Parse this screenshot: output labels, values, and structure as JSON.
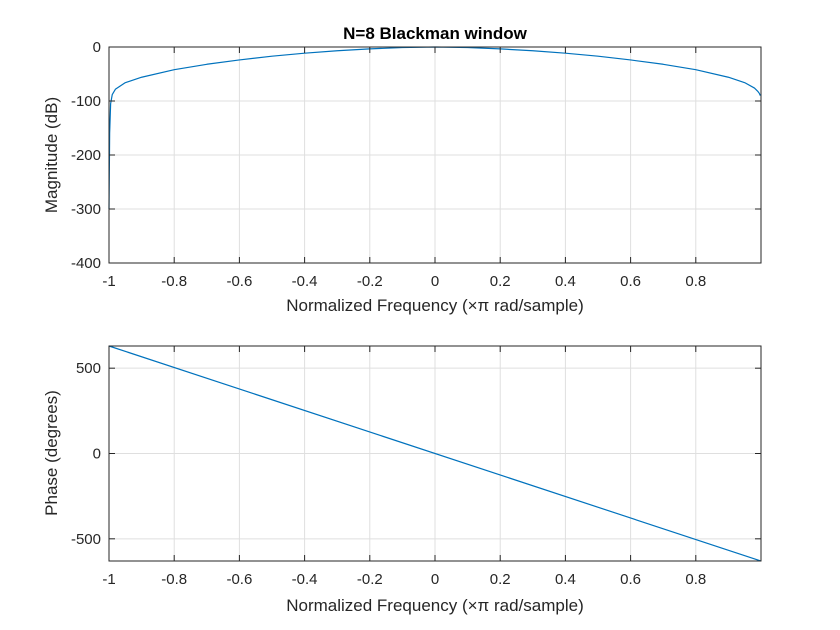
{
  "chart_data": [
    {
      "type": "line",
      "title": "N=8 Blackman window",
      "xlabel": "Normalized Frequency  (×π rad/sample)",
      "ylabel": "Magnitude (dB)",
      "xlim": [
        -1,
        1
      ],
      "ylim": [
        -400,
        0
      ],
      "xticks": [
        -1,
        -0.8,
        -0.6,
        -0.4,
        -0.2,
        0,
        0.2,
        0.4,
        0.6,
        0.8
      ],
      "xtick_labels": [
        "-1",
        "-0.8",
        "-0.6",
        "-0.4",
        "-0.2",
        "0",
        "0.2",
        "0.4",
        "0.6",
        "0.8"
      ],
      "yticks": [
        -400,
        -300,
        -200,
        -100,
        0
      ],
      "ytick_labels": [
        "-400",
        "-300",
        "-200",
        "-100",
        "0"
      ],
      "grid": true,
      "series": [
        {
          "color": "#0072BD",
          "x": [
            -1.0,
            -0.998,
            -0.995,
            -0.99,
            -0.98,
            -0.95,
            -0.9,
            -0.8,
            -0.7,
            -0.6,
            -0.5,
            -0.4,
            -0.3,
            -0.2,
            -0.1,
            0,
            0.1,
            0.2,
            0.3,
            0.4,
            0.5,
            0.6,
            0.7,
            0.8,
            0.9,
            0.95,
            0.98,
            0.99,
            0.995,
            0.998
          ],
          "y": [
            -300,
            -160,
            -105,
            -88,
            -78,
            -66,
            -56,
            -42,
            -32,
            -24,
            -17,
            -11.5,
            -7,
            -3.5,
            -1,
            0,
            -1,
            -3.5,
            -7,
            -11.5,
            -17,
            -24,
            -32,
            -42,
            -56,
            -66,
            -76,
            -82,
            -86,
            -90
          ]
        }
      ]
    },
    {
      "type": "line",
      "title": "",
      "xlabel": "Normalized Frequency  (×π rad/sample)",
      "ylabel": "Phase (degrees)",
      "xlim": [
        -1,
        1
      ],
      "ylim": [
        -630,
        630
      ],
      "xticks": [
        -1,
        -0.8,
        -0.6,
        -0.4,
        -0.2,
        0,
        0.2,
        0.4,
        0.6,
        0.8
      ],
      "xtick_labels": [
        "-1",
        "-0.8",
        "-0.6",
        "-0.4",
        "-0.2",
        "0",
        "0.2",
        "0.4",
        "0.6",
        "0.8"
      ],
      "yticks": [
        -500,
        0,
        500
      ],
      "ytick_labels": [
        "-500",
        "0",
        "500"
      ],
      "grid": true,
      "series": [
        {
          "color": "#0072BD",
          "x": [
            -1.0,
            0.998
          ],
          "y": [
            630,
            -628.7
          ]
        }
      ]
    }
  ]
}
